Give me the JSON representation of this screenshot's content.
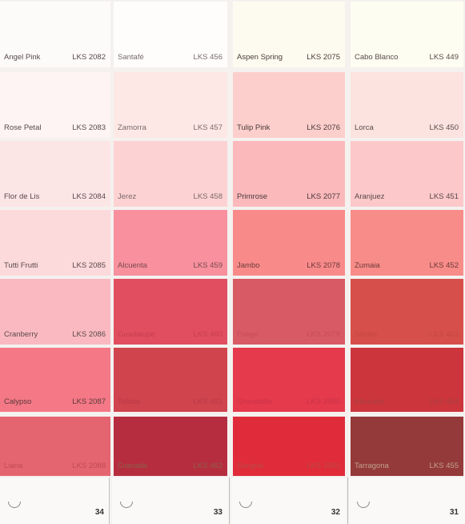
{
  "columns": [
    {
      "page_number": "34",
      "swatches": [
        {
          "name": "Angel Pink",
          "code": "LKS 2082",
          "color": "#fdfbfa",
          "text": "#5a4a4a"
        },
        {
          "name": "Rose Petal",
          "code": "LKS 2083",
          "color": "#fdf4f3",
          "text": "#5a4a4a"
        },
        {
          "name": "Flor de Lis",
          "code": "LKS 2084",
          "color": "#fce6e5",
          "text": "#5a4a4a"
        },
        {
          "name": "Tutti Frutti",
          "code": "LKS 2085",
          "color": "#fcd9db",
          "text": "#5a4a4a"
        },
        {
          "name": "Cranberry",
          "code": "LKS 2086",
          "color": "#fab9c0",
          "text": "#5a4a4a"
        },
        {
          "name": "Calypso",
          "code": "LKS 2087",
          "color": "#f47886",
          "text": "#5a3a3a"
        },
        {
          "name": "Liana",
          "code": "LKS 2088",
          "color": "#e46570",
          "text": "#c04a56"
        }
      ]
    },
    {
      "page_number": "33",
      "swatches": [
        {
          "name": "Santafé",
          "code": "LKS 456",
          "color": "#fefdfc",
          "text": "#7a6a6a"
        },
        {
          "name": "Zamorra",
          "code": "LKS 457",
          "color": "#fde8e6",
          "text": "#7a6a6a"
        },
        {
          "name": "Jerez",
          "code": "LKS 458",
          "color": "#fdd2d2",
          "text": "#7a6a6a"
        },
        {
          "name": "Alcuenta",
          "code": "LKS 459",
          "color": "#f8909d",
          "text": "#7a4a50"
        },
        {
          "name": "Guadalupe",
          "code": "LKS 460",
          "color": "#e04e60",
          "text": "#c83e50"
        },
        {
          "name": "Toledo",
          "code": "LKS 461",
          "color": "#d0444e",
          "text": "#b83a44"
        },
        {
          "name": "Granada",
          "code": "LKS 462",
          "color": "#b72d40",
          "text": "#8a6048"
        }
      ]
    },
    {
      "page_number": "32",
      "swatches": [
        {
          "name": "Aspen Spring",
          "code": "LKS 2075",
          "color": "#fdfbef",
          "text": "#4a3a3a"
        },
        {
          "name": "Tulip Pink",
          "code": "LKS 2076",
          "color": "#fccfcc",
          "text": "#4a3a3a"
        },
        {
          "name": "Primrose",
          "code": "LKS 2077",
          "color": "#fbb9bc",
          "text": "#4a3a3a"
        },
        {
          "name": "Jambo",
          "code": "LKS 2078",
          "color": "#f98a8a",
          "text": "#6a3a3a"
        },
        {
          "name": "Fuego",
          "code": "LKS 2079",
          "color": "#d85a64",
          "text": "#c44c58"
        },
        {
          "name": "Granadilla",
          "code": "LKS 2080",
          "color": "#e5394c",
          "text": "#c8344a"
        },
        {
          "name": "Sangria",
          "code": "LKS 2081",
          "color": "#e02c3a",
          "text": "#b84a48"
        }
      ]
    },
    {
      "page_number": "31",
      "swatches": [
        {
          "name": "Cabo Blanco",
          "code": "LKS 449",
          "color": "#fefdf1",
          "text": "#5a4a4a"
        },
        {
          "name": "Lorca",
          "code": "LKS 450",
          "color": "#fce3e0",
          "text": "#5a4a4a"
        },
        {
          "name": "Aranjuez",
          "code": "LKS 451",
          "color": "#fcc8c9",
          "text": "#5a4a4a"
        },
        {
          "name": "Zumaia",
          "code": "LKS 452",
          "color": "#f88c88",
          "text": "#6a3a3a"
        },
        {
          "name": "Sevilla",
          "code": "LKS 453",
          "color": "#d74f4a",
          "text": "#c44840"
        },
        {
          "name": "Albacete",
          "code": "LKS 454",
          "color": "#cc353c",
          "text": "#a84040"
        },
        {
          "name": "Tarragona",
          "code": "LKS 455",
          "color": "#943a3a",
          "text": "#c0a090"
        }
      ]
    }
  ]
}
